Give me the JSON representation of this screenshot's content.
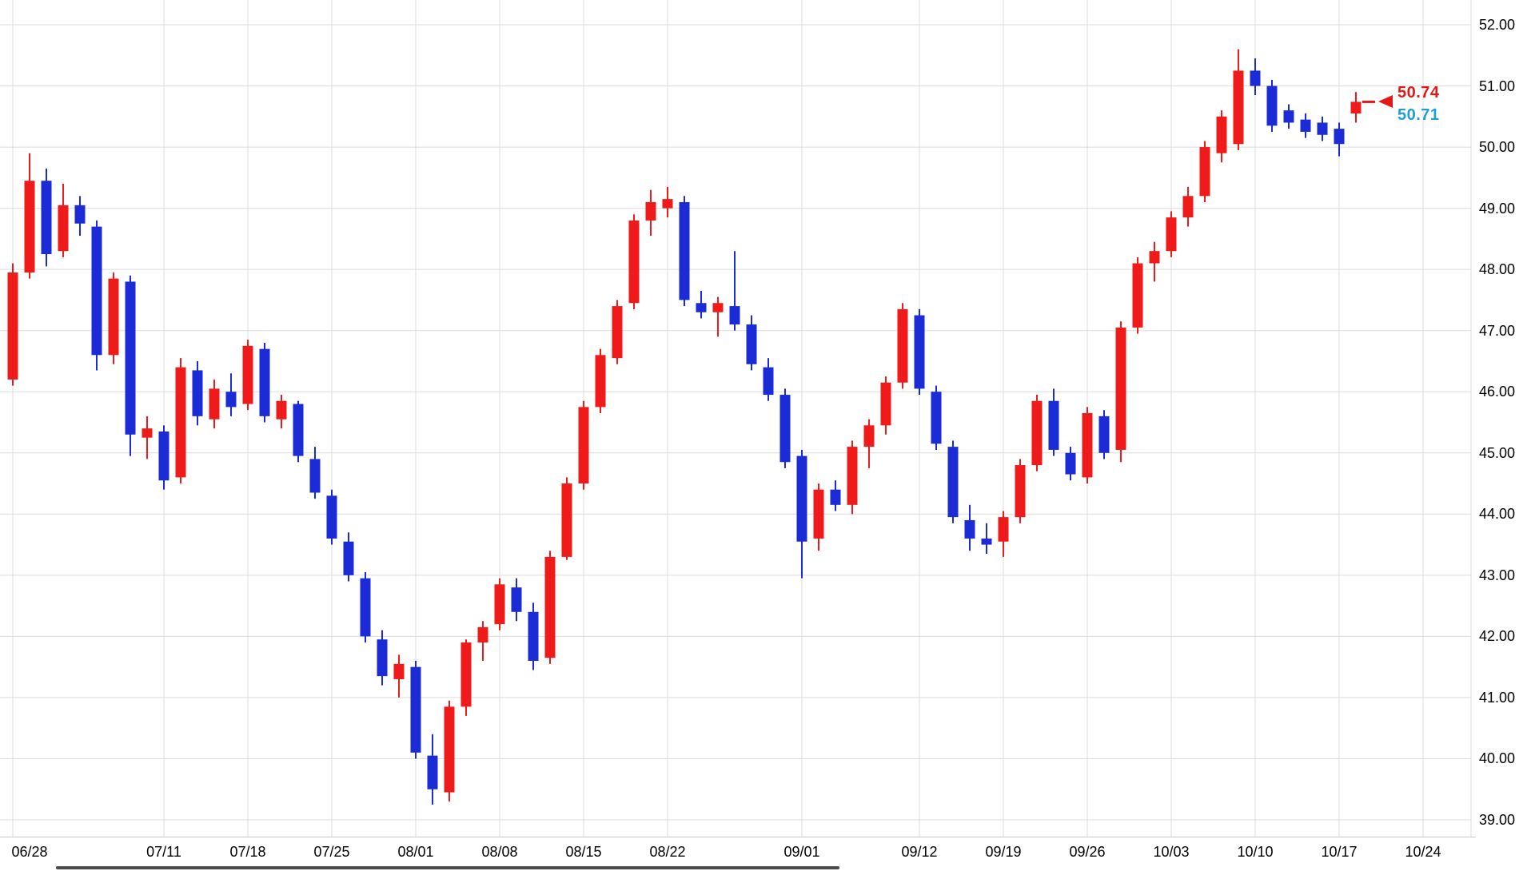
{
  "chart_data": {
    "type": "candlestick",
    "title": "",
    "grid": true,
    "legend": false,
    "colors": {
      "up": "#ef1a1a",
      "down": "#1b2bd5",
      "grid": "#dcdcdc",
      "axis_text": "#000000",
      "background": "#ffffff",
      "scrollbar": "#4a4a4a"
    },
    "y_axis": {
      "side": "right",
      "min": 39,
      "max": 52,
      "step": 1,
      "ticks": [
        {
          "value": 52,
          "label": "52.00"
        },
        {
          "value": 51,
          "label": "51.00"
        },
        {
          "value": 50,
          "label": "50.00"
        },
        {
          "value": 49,
          "label": "49.00"
        },
        {
          "value": 48,
          "label": "48.00"
        },
        {
          "value": 47,
          "label": "47.00"
        },
        {
          "value": 46,
          "label": "46.00"
        },
        {
          "value": 45,
          "label": "45.00"
        },
        {
          "value": 44,
          "label": "44.00"
        },
        {
          "value": 43,
          "label": "43.00"
        },
        {
          "value": 42,
          "label": "42.00"
        },
        {
          "value": 41,
          "label": "41.00"
        },
        {
          "value": 40,
          "label": "40.00"
        },
        {
          "value": 39,
          "label": "39.00"
        }
      ]
    },
    "x_axis": {
      "labels": [
        {
          "text": "06/28",
          "index": 0
        },
        {
          "text": "07/11",
          "index": 9
        },
        {
          "text": "07/18",
          "index": 14
        },
        {
          "text": "07/25",
          "index": 19
        },
        {
          "text": "08/01",
          "index": 24
        },
        {
          "text": "08/08",
          "index": 29
        },
        {
          "text": "08/15",
          "index": 34
        },
        {
          "text": "08/22",
          "index": 39
        },
        {
          "text": "09/01",
          "index": 47
        },
        {
          "text": "09/12",
          "index": 54
        },
        {
          "text": "09/19",
          "index": 59
        },
        {
          "text": "09/26",
          "index": 64
        },
        {
          "text": "10/03",
          "index": 69
        },
        {
          "text": "10/10",
          "index": 74
        },
        {
          "text": "10/17",
          "index": 79
        },
        {
          "text": "10/24",
          "index": 84
        }
      ]
    },
    "candles": [
      {
        "date": "06/28",
        "o": 46.2,
        "h": 48.1,
        "l": 46.1,
        "c": 47.95
      },
      {
        "date": "06/29",
        "o": 47.95,
        "h": 49.9,
        "l": 47.85,
        "c": 49.45
      },
      {
        "date": "06/30",
        "o": 49.45,
        "h": 49.65,
        "l": 48.05,
        "c": 48.25
      },
      {
        "date": "07/01",
        "o": 48.3,
        "h": 49.4,
        "l": 48.2,
        "c": 49.05
      },
      {
        "date": "07/04",
        "o": 49.05,
        "h": 49.2,
        "l": 48.55,
        "c": 48.75
      },
      {
        "date": "07/05",
        "o": 48.7,
        "h": 48.8,
        "l": 46.35,
        "c": 46.6
      },
      {
        "date": "07/06",
        "o": 46.6,
        "h": 47.95,
        "l": 46.45,
        "c": 47.85
      },
      {
        "date": "07/07",
        "o": 47.8,
        "h": 47.9,
        "l": 44.95,
        "c": 45.3
      },
      {
        "date": "07/08",
        "o": 45.25,
        "h": 45.6,
        "l": 44.9,
        "c": 45.4
      },
      {
        "date": "07/11",
        "o": 45.35,
        "h": 45.45,
        "l": 44.4,
        "c": 44.55
      },
      {
        "date": "07/12",
        "o": 44.6,
        "h": 46.55,
        "l": 44.5,
        "c": 46.4
      },
      {
        "date": "07/13",
        "o": 46.35,
        "h": 46.5,
        "l": 45.45,
        "c": 45.6
      },
      {
        "date": "07/14",
        "o": 45.55,
        "h": 46.2,
        "l": 45.4,
        "c": 46.05
      },
      {
        "date": "07/15",
        "o": 46.0,
        "h": 46.3,
        "l": 45.6,
        "c": 45.75
      },
      {
        "date": "07/18",
        "o": 45.8,
        "h": 46.85,
        "l": 45.7,
        "c": 46.75
      },
      {
        "date": "07/19",
        "o": 46.7,
        "h": 46.8,
        "l": 45.5,
        "c": 45.6
      },
      {
        "date": "07/20",
        "o": 45.55,
        "h": 45.95,
        "l": 45.4,
        "c": 45.85
      },
      {
        "date": "07/21",
        "o": 45.8,
        "h": 45.85,
        "l": 44.85,
        "c": 44.95
      },
      {
        "date": "07/22",
        "o": 44.9,
        "h": 45.1,
        "l": 44.25,
        "c": 44.35
      },
      {
        "date": "07/25",
        "o": 44.3,
        "h": 44.4,
        "l": 43.5,
        "c": 43.6
      },
      {
        "date": "07/26",
        "o": 43.55,
        "h": 43.7,
        "l": 42.9,
        "c": 43.0
      },
      {
        "date": "07/27",
        "o": 42.95,
        "h": 43.05,
        "l": 41.9,
        "c": 42.0
      },
      {
        "date": "07/28",
        "o": 41.95,
        "h": 42.1,
        "l": 41.2,
        "c": 41.35
      },
      {
        "date": "07/29",
        "o": 41.3,
        "h": 41.7,
        "l": 41.0,
        "c": 41.55
      },
      {
        "date": "08/01",
        "o": 41.5,
        "h": 41.6,
        "l": 40.0,
        "c": 40.1
      },
      {
        "date": "08/02",
        "o": 40.05,
        "h": 40.4,
        "l": 39.25,
        "c": 39.5
      },
      {
        "date": "08/03",
        "o": 39.45,
        "h": 40.95,
        "l": 39.3,
        "c": 40.85
      },
      {
        "date": "08/04",
        "o": 40.85,
        "h": 41.95,
        "l": 40.7,
        "c": 41.9
      },
      {
        "date": "08/05",
        "o": 41.9,
        "h": 42.25,
        "l": 41.6,
        "c": 42.15
      },
      {
        "date": "08/08",
        "o": 42.2,
        "h": 42.95,
        "l": 42.1,
        "c": 42.85
      },
      {
        "date": "08/09",
        "o": 42.8,
        "h": 42.95,
        "l": 42.25,
        "c": 42.4
      },
      {
        "date": "08/10",
        "o": 42.4,
        "h": 42.55,
        "l": 41.45,
        "c": 41.6
      },
      {
        "date": "08/11",
        "o": 41.65,
        "h": 43.4,
        "l": 41.55,
        "c": 43.3
      },
      {
        "date": "08/12",
        "o": 43.3,
        "h": 44.6,
        "l": 43.25,
        "c": 44.5
      },
      {
        "date": "08/15",
        "o": 44.5,
        "h": 45.85,
        "l": 44.4,
        "c": 45.75
      },
      {
        "date": "08/16",
        "o": 45.75,
        "h": 46.7,
        "l": 45.65,
        "c": 46.6
      },
      {
        "date": "08/17",
        "o": 46.55,
        "h": 47.5,
        "l": 46.45,
        "c": 47.4
      },
      {
        "date": "08/18",
        "o": 47.45,
        "h": 48.9,
        "l": 47.35,
        "c": 48.8
      },
      {
        "date": "08/19",
        "o": 48.8,
        "h": 49.3,
        "l": 48.55,
        "c": 49.1
      },
      {
        "date": "08/22",
        "o": 49.0,
        "h": 49.35,
        "l": 48.85,
        "c": 49.15
      },
      {
        "date": "08/23",
        "o": 49.1,
        "h": 49.2,
        "l": 47.4,
        "c": 47.5
      },
      {
        "date": "08/24",
        "o": 47.45,
        "h": 47.65,
        "l": 47.2,
        "c": 47.3
      },
      {
        "date": "08/25",
        "o": 47.3,
        "h": 47.55,
        "l": 46.9,
        "c": 47.45
      },
      {
        "date": "08/26",
        "o": 47.4,
        "h": 48.3,
        "l": 47.0,
        "c": 47.1
      },
      {
        "date": "08/29",
        "o": 47.1,
        "h": 47.25,
        "l": 46.35,
        "c": 46.45
      },
      {
        "date": "08/30",
        "o": 46.4,
        "h": 46.55,
        "l": 45.85,
        "c": 45.95
      },
      {
        "date": "08/31",
        "o": 45.95,
        "h": 46.05,
        "l": 44.75,
        "c": 44.85
      },
      {
        "date": "09/01",
        "o": 44.95,
        "h": 45.05,
        "l": 42.95,
        "c": 43.55
      },
      {
        "date": "09/02",
        "o": 43.6,
        "h": 44.5,
        "l": 43.4,
        "c": 44.4
      },
      {
        "date": "09/05",
        "o": 44.4,
        "h": 44.55,
        "l": 44.05,
        "c": 44.15
      },
      {
        "date": "09/06",
        "o": 44.15,
        "h": 45.2,
        "l": 44.0,
        "c": 45.1
      },
      {
        "date": "09/07",
        "o": 45.1,
        "h": 45.55,
        "l": 44.75,
        "c": 45.45
      },
      {
        "date": "09/08",
        "o": 45.45,
        "h": 46.25,
        "l": 45.3,
        "c": 46.15
      },
      {
        "date": "09/09",
        "o": 46.15,
        "h": 47.45,
        "l": 46.05,
        "c": 47.35
      },
      {
        "date": "09/12",
        "o": 47.25,
        "h": 47.35,
        "l": 45.95,
        "c": 46.05
      },
      {
        "date": "09/13",
        "o": 46.0,
        "h": 46.1,
        "l": 45.05,
        "c": 45.15
      },
      {
        "date": "09/14",
        "o": 45.1,
        "h": 45.2,
        "l": 43.85,
        "c": 43.95
      },
      {
        "date": "09/15",
        "o": 43.9,
        "h": 44.15,
        "l": 43.4,
        "c": 43.6
      },
      {
        "date": "09/16",
        "o": 43.6,
        "h": 43.85,
        "l": 43.35,
        "c": 43.5
      },
      {
        "date": "09/19",
        "o": 43.55,
        "h": 44.05,
        "l": 43.3,
        "c": 43.95
      },
      {
        "date": "09/20",
        "o": 43.95,
        "h": 44.9,
        "l": 43.85,
        "c": 44.8
      },
      {
        "date": "09/21",
        "o": 44.8,
        "h": 45.95,
        "l": 44.7,
        "c": 45.85
      },
      {
        "date": "09/22",
        "o": 45.85,
        "h": 46.05,
        "l": 44.95,
        "c": 45.05
      },
      {
        "date": "09/23",
        "o": 45.0,
        "h": 45.1,
        "l": 44.55,
        "c": 44.65
      },
      {
        "date": "09/26",
        "o": 44.6,
        "h": 45.75,
        "l": 44.5,
        "c": 45.65
      },
      {
        "date": "09/27",
        "o": 45.6,
        "h": 45.7,
        "l": 44.9,
        "c": 45.0
      },
      {
        "date": "09/28",
        "o": 45.05,
        "h": 47.15,
        "l": 44.85,
        "c": 47.05
      },
      {
        "date": "09/29",
        "o": 47.05,
        "h": 48.2,
        "l": 46.95,
        "c": 48.1
      },
      {
        "date": "09/30",
        "o": 48.1,
        "h": 48.45,
        "l": 47.8,
        "c": 48.3
      },
      {
        "date": "10/03",
        "o": 48.3,
        "h": 48.95,
        "l": 48.2,
        "c": 48.85
      },
      {
        "date": "10/04",
        "o": 48.85,
        "h": 49.35,
        "l": 48.7,
        "c": 49.2
      },
      {
        "date": "10/05",
        "o": 49.2,
        "h": 50.1,
        "l": 49.1,
        "c": 50.0
      },
      {
        "date": "10/06",
        "o": 49.9,
        "h": 50.6,
        "l": 49.75,
        "c": 50.5
      },
      {
        "date": "10/07",
        "o": 50.05,
        "h": 51.6,
        "l": 49.95,
        "c": 51.25
      },
      {
        "date": "10/10",
        "o": 51.25,
        "h": 51.45,
        "l": 50.85,
        "c": 51.0
      },
      {
        "date": "10/11",
        "o": 51.0,
        "h": 51.1,
        "l": 50.25,
        "c": 50.35
      },
      {
        "date": "10/12",
        "o": 50.6,
        "h": 50.7,
        "l": 50.3,
        "c": 50.4
      },
      {
        "date": "10/13",
        "o": 50.45,
        "h": 50.55,
        "l": 50.15,
        "c": 50.25
      },
      {
        "date": "10/14",
        "o": 50.4,
        "h": 50.5,
        "l": 50.1,
        "c": 50.2
      },
      {
        "date": "10/17",
        "o": 50.3,
        "h": 50.4,
        "l": 49.85,
        "c": 50.05
      },
      {
        "date": "10/18",
        "o": 50.55,
        "h": 50.9,
        "l": 50.4,
        "c": 50.74
      }
    ],
    "price_markers": {
      "ask": {
        "label": "50.74",
        "value": 50.74,
        "color": "#e51717"
      },
      "bid": {
        "label": "50.71",
        "value": 50.71,
        "color": "#1e9ed9"
      }
    }
  }
}
